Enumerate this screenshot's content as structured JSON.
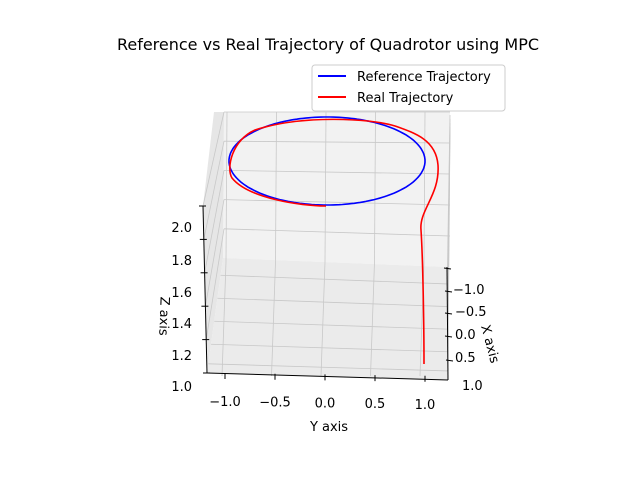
{
  "chart_data": {
    "type": "line",
    "projection": "3d",
    "title": "Reference vs Real Trajectory of Quadrotor using MPC",
    "xlabel": "X axis",
    "ylabel": "Y axis",
    "zlabel": "Z axis",
    "xlim": [
      -1.2,
      1.2
    ],
    "ylim": [
      -1.2,
      1.2
    ],
    "zlim": [
      1.0,
      2.0
    ],
    "xticks": [
      "−1.0",
      "−0.5",
      "0.0",
      "0.5",
      "1.0"
    ],
    "yticks": [
      "−1.0",
      "−0.5",
      "0.0",
      "0.5",
      "1.0"
    ],
    "zticks": [
      "1.0",
      "1.2",
      "1.4",
      "1.6",
      "1.8",
      "2.0"
    ],
    "grid": true,
    "legend_position": "top-right",
    "series": [
      {
        "name": "Reference Trajectory",
        "color": "#0000ff",
        "description_points": "circle radius 1.0 centered at (0,0) at z=2.0",
        "x": [
          0.0,
          0.5,
          0.866,
          1.0,
          0.866,
          0.5,
          0.0,
          -0.5,
          -0.866,
          -1.0,
          -0.866,
          -0.5,
          0.0
        ],
        "y": [
          1.0,
          0.866,
          0.5,
          0.0,
          -0.5,
          -0.866,
          -1.0,
          -0.866,
          -0.5,
          0.0,
          0.5,
          0.866,
          1.0
        ],
        "z": [
          2.0,
          2.0,
          2.0,
          2.0,
          2.0,
          2.0,
          2.0,
          2.0,
          2.0,
          2.0,
          2.0,
          2.0,
          2.0
        ]
      },
      {
        "name": "Real Trajectory",
        "color": "#ff0000",
        "x": [
          0.9,
          0.9,
          0.9,
          0.85,
          0.5,
          0.2,
          0.0,
          0.5,
          0.866,
          1.0,
          0.866,
          0.5,
          0.0,
          -0.5,
          -0.866,
          -1.0,
          -0.866,
          -0.5,
          0.0
        ],
        "y": [
          1.0,
          1.0,
          1.0,
          1.05,
          1.15,
          1.1,
          1.0,
          0.866,
          0.5,
          0.0,
          -0.5,
          -0.866,
          -1.0,
          -0.866,
          -0.5,
          0.0,
          0.5,
          0.866,
          1.0
        ],
        "z": [
          1.0,
          1.3,
          1.6,
          1.8,
          1.95,
          2.0,
          2.0,
          2.0,
          2.0,
          2.0,
          2.0,
          2.0,
          2.0,
          2.0,
          2.0,
          2.0,
          2.0,
          2.0,
          2.0
        ]
      }
    ]
  }
}
